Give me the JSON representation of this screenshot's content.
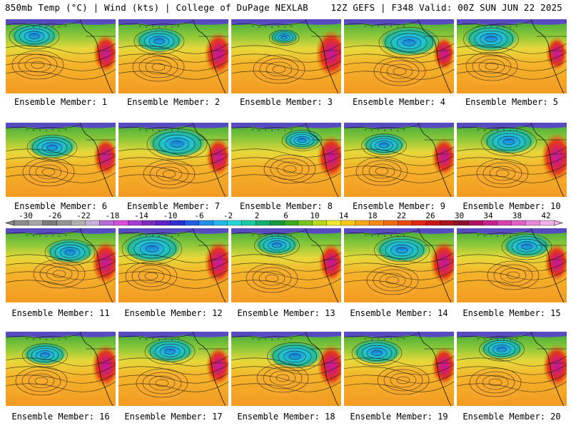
{
  "header": {
    "left": "850mb Temp (°C) | Wind (kts) | College of DuPage NEXLAB",
    "right": "12Z GEFS | F348 Valid: 00Z SUN JUN 22 2025"
  },
  "caption_prefix": "Ensemble Member:",
  "members": [
    {
      "label": "Ensemble Member: 1",
      "low_strength": 1.0,
      "high_strength": 0.8
    },
    {
      "label": "Ensemble Member: 2",
      "low_strength": 1.0,
      "high_strength": 0.9
    },
    {
      "label": "Ensemble Member: 3",
      "low_strength": 0.6,
      "high_strength": 1.0
    },
    {
      "label": "Ensemble Member: 4",
      "low_strength": 1.2,
      "high_strength": 0.7
    },
    {
      "label": "Ensemble Member: 5",
      "low_strength": 1.1,
      "high_strength": 0.7
    },
    {
      "label": "Ensemble Member: 6",
      "low_strength": 1.0,
      "high_strength": 0.8
    },
    {
      "label": "Ensemble Member: 7",
      "low_strength": 1.2,
      "high_strength": 0.8
    },
    {
      "label": "Ensemble Member: 8",
      "low_strength": 0.8,
      "high_strength": 0.9
    },
    {
      "label": "Ensemble Member: 9",
      "low_strength": 0.9,
      "high_strength": 0.8
    },
    {
      "label": "Ensemble Member: 10",
      "low_strength": 1.1,
      "high_strength": 1.0
    },
    {
      "label": "Ensemble Member: 11",
      "low_strength": 1.0,
      "high_strength": 0.9
    },
    {
      "label": "Ensemble Member: 12",
      "low_strength": 1.2,
      "high_strength": 0.9
    },
    {
      "label": "Ensemble Member: 13",
      "low_strength": 0.9,
      "high_strength": 0.8
    },
    {
      "label": "Ensemble Member: 14",
      "low_strength": 1.1,
      "high_strength": 0.9
    },
    {
      "label": "Ensemble Member: 15",
      "low_strength": 1.0,
      "high_strength": 0.8
    },
    {
      "label": "Ensemble Member: 16",
      "low_strength": 0.9,
      "high_strength": 0.9
    },
    {
      "label": "Ensemble Member: 17",
      "low_strength": 1.0,
      "high_strength": 0.8
    },
    {
      "label": "Ensemble Member: 18",
      "low_strength": 1.1,
      "high_strength": 0.9
    },
    {
      "label": "Ensemble Member: 19",
      "low_strength": 1.0,
      "high_strength": 0.8
    },
    {
      "label": "Ensemble Member: 20",
      "low_strength": 0.9,
      "high_strength": 0.9
    }
  ],
  "colorbar": {
    "tick_labels": [
      "-30",
      "-26",
      "-22",
      "-18",
      "-14",
      "-10",
      "-6",
      "-2",
      "2",
      "6",
      "10",
      "14",
      "18",
      "22",
      "26",
      "30",
      "34",
      "38",
      "42"
    ],
    "colors": [
      "#8c8c8c",
      "#a6a6a6",
      "#7a7a7a",
      "#949494",
      "#b0b0b0",
      "#c7b0d9",
      "#b36bd6",
      "#d94fd9",
      "#a63ad1",
      "#7a2bbd",
      "#5a22c7",
      "#2a2fd0",
      "#1e5fe0",
      "#1e8fe8",
      "#22b6e8",
      "#26d6d6",
      "#1cc9a0",
      "#12b070",
      "#189a3c",
      "#3caa1e",
      "#7ac41c",
      "#b8d81a",
      "#f0e82a",
      "#f8c81a",
      "#f8a61a",
      "#f88a14",
      "#f06a12",
      "#e84a10",
      "#e02a14",
      "#c81818",
      "#a81420",
      "#8c1030",
      "#b01060",
      "#c8208c",
      "#d840b0",
      "#e060c8",
      "#e886d8",
      "#f0b0e8"
    ]
  }
}
